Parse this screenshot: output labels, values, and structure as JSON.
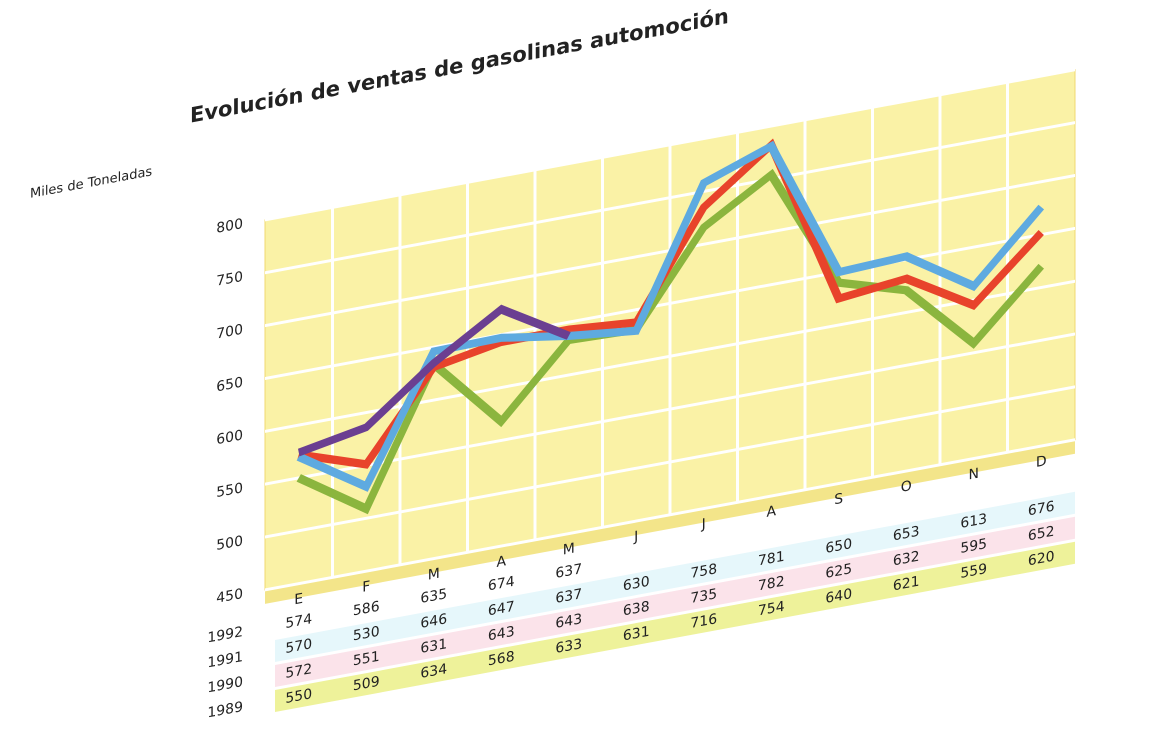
{
  "chart_data": {
    "type": "line",
    "title": "Evolución de ventas de gasolinas automoción",
    "y_axis_label": "Miles de Toneladas",
    "categories": [
      "E",
      "F",
      "M",
      "A",
      "M",
      "J",
      "J",
      "A",
      "S",
      "O",
      "N",
      "D"
    ],
    "ylim": [
      450,
      800
    ],
    "yticks": [
      450,
      500,
      550,
      600,
      650,
      700,
      750,
      800
    ],
    "grid": true,
    "series": [
      {
        "name": "1992",
        "color": "#6b3f91",
        "row_color": "#ffffff",
        "values": [
          574,
          586,
          635,
          674,
          637,
          null,
          null,
          null,
          null,
          null,
          null,
          null
        ]
      },
      {
        "name": "1991",
        "color": "#5eaae0",
        "row_color": "#e6f7fb",
        "values": [
          570,
          530,
          646,
          647,
          637,
          630,
          758,
          781,
          650,
          653,
          613,
          676
        ]
      },
      {
        "name": "1990",
        "color": "#e8432b",
        "row_color": "#fbe3ea",
        "values": [
          572,
          551,
          631,
          643,
          643,
          638,
          735,
          782,
          625,
          632,
          595,
          652
        ]
      },
      {
        "name": "1989",
        "color": "#8bb53e",
        "row_color": "#eef29a",
        "values": [
          550,
          509,
          634,
          568,
          633,
          631,
          716,
          754,
          640,
          621,
          559,
          620
        ]
      }
    ]
  }
}
